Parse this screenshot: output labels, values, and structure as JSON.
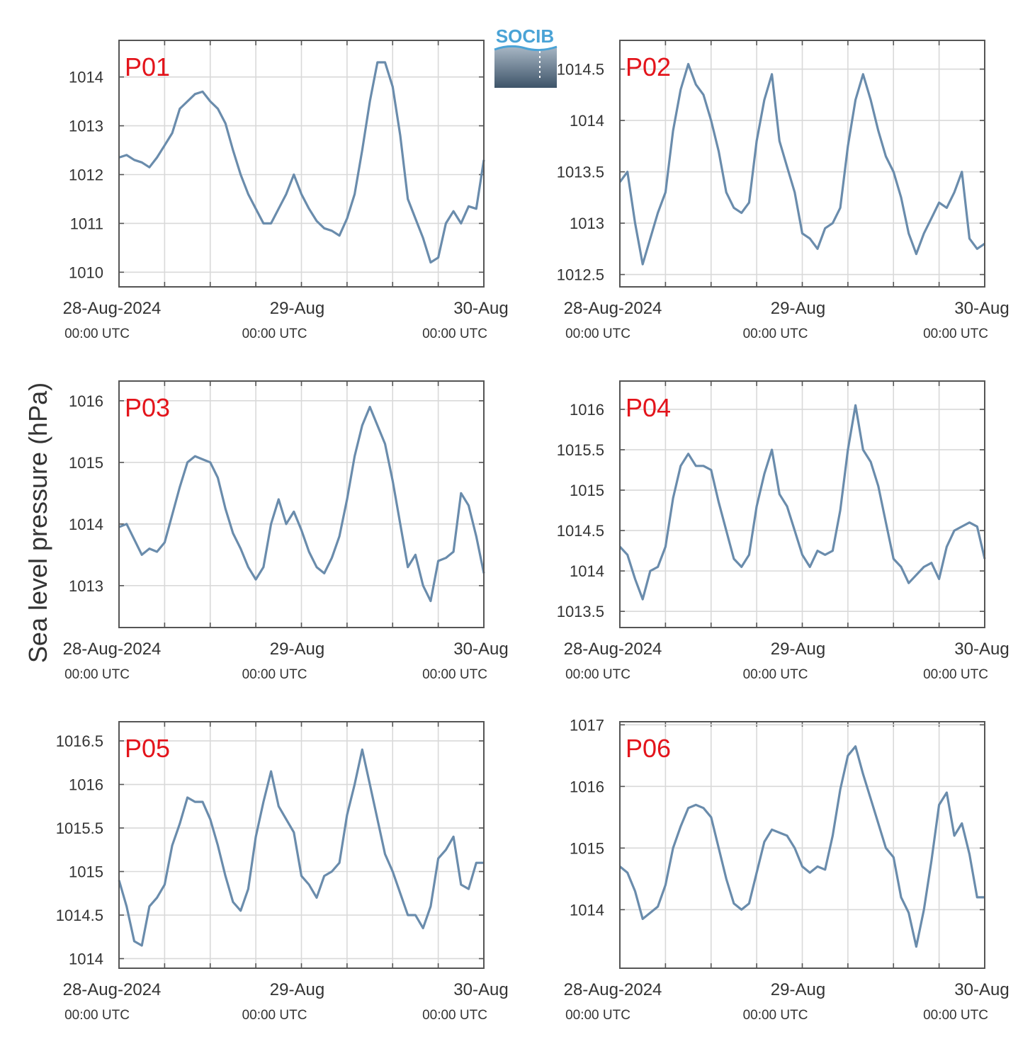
{
  "figure": {
    "ylabel": "Sea level pressure (hPa)",
    "logo_text": "SOCIB",
    "series_color": "#6a8cac",
    "label_color": "#e3141b",
    "grid_color": "#d9d9d9",
    "axis_color": "#555555"
  },
  "x_ticks": [
    {
      "date": "28-Aug-2024",
      "time": "00:00 UTC"
    },
    {
      "date": "29-Aug",
      "time": "00:00 UTC"
    },
    {
      "date": "30-Aug",
      "time": "00:00 UTC"
    }
  ],
  "chart_data": [
    {
      "type": "line",
      "label": "P01",
      "xlim": [
        0,
        48
      ],
      "ylim": [
        1009.7,
        1014.75
      ],
      "yticks": [
        1010,
        1011,
        1012,
        1013,
        1014
      ],
      "x": [
        0,
        1,
        2,
        3,
        4,
        5,
        6,
        7,
        8,
        9,
        10,
        11,
        12,
        13,
        14,
        15,
        16,
        17,
        18,
        19,
        20,
        21,
        22,
        23,
        24,
        25,
        26,
        27,
        28,
        29,
        30,
        31,
        32,
        33,
        34,
        35,
        36,
        37,
        38,
        39,
        40,
        41,
        42,
        43,
        44,
        45,
        46,
        47,
        48
      ],
      "values": [
        1012.35,
        1012.4,
        1012.3,
        1012.25,
        1012.15,
        1012.35,
        1012.6,
        1012.85,
        1013.35,
        1013.5,
        1013.65,
        1013.7,
        1013.5,
        1013.35,
        1013.05,
        1012.5,
        1012.0,
        1011.6,
        1011.3,
        1011.0,
        1011.0,
        1011.3,
        1011.6,
        1012.0,
        1011.6,
        1011.3,
        1011.05,
        1010.9,
        1010.85,
        1010.75,
        1011.1,
        1011.6,
        1012.5,
        1013.5,
        1014.3,
        1014.3,
        1013.8,
        1012.8,
        1011.5,
        1011.1,
        1010.7,
        1010.2,
        1010.3,
        1011.0,
        1011.25,
        1011.0,
        1011.35,
        1011.3,
        1012.3
      ]
    },
    {
      "type": "line",
      "label": "P02",
      "xlim": [
        0,
        48
      ],
      "ylim": [
        1012.38,
        1014.78
      ],
      "yticks": [
        1012.5,
        1013,
        1013.5,
        1014,
        1014.5
      ],
      "x": [
        0,
        1,
        2,
        3,
        4,
        5,
        6,
        7,
        8,
        9,
        10,
        11,
        12,
        13,
        14,
        15,
        16,
        17,
        18,
        19,
        20,
        21,
        22,
        23,
        24,
        25,
        26,
        27,
        28,
        29,
        30,
        31,
        32,
        33,
        34,
        35,
        36,
        37,
        38,
        39,
        40,
        41,
        42,
        43,
        44,
        45,
        46,
        47,
        48
      ],
      "values": [
        1013.4,
        1013.5,
        1013.0,
        1012.6,
        1012.85,
        1013.1,
        1013.3,
        1013.9,
        1014.3,
        1014.55,
        1014.35,
        1014.25,
        1014.0,
        1013.7,
        1013.3,
        1013.15,
        1013.1,
        1013.2,
        1013.8,
        1014.2,
        1014.45,
        1013.8,
        1013.55,
        1013.3,
        1012.9,
        1012.85,
        1012.75,
        1012.95,
        1013.0,
        1013.15,
        1013.75,
        1014.2,
        1014.45,
        1014.2,
        1013.9,
        1013.65,
        1013.5,
        1013.25,
        1012.9,
        1012.7,
        1012.9,
        1013.05,
        1013.2,
        1013.15,
        1013.3,
        1013.5,
        1012.85,
        1012.75,
        1012.8
      ]
    },
    {
      "type": "line",
      "label": "P03",
      "xlim": [
        0,
        48
      ],
      "ylim": [
        1012.32,
        1016.32
      ],
      "yticks": [
        1013,
        1014,
        1015,
        1016
      ],
      "x": [
        0,
        1,
        2,
        3,
        4,
        5,
        6,
        7,
        8,
        9,
        10,
        11,
        12,
        13,
        14,
        15,
        16,
        17,
        18,
        19,
        20,
        21,
        22,
        23,
        24,
        25,
        26,
        27,
        28,
        29,
        30,
        31,
        32,
        33,
        34,
        35,
        36,
        37,
        38,
        39,
        40,
        41,
        42,
        43,
        44,
        45,
        46,
        47,
        48
      ],
      "values": [
        1013.95,
        1014.0,
        1013.75,
        1013.5,
        1013.6,
        1013.55,
        1013.7,
        1014.15,
        1014.6,
        1015.0,
        1015.1,
        1015.05,
        1015.0,
        1014.75,
        1014.25,
        1013.85,
        1013.6,
        1013.3,
        1013.1,
        1013.3,
        1014.0,
        1014.4,
        1014.0,
        1014.2,
        1013.9,
        1013.55,
        1013.3,
        1013.2,
        1013.45,
        1013.8,
        1014.4,
        1015.1,
        1015.6,
        1015.9,
        1015.6,
        1015.3,
        1014.7,
        1014.0,
        1013.3,
        1013.5,
        1013.0,
        1012.75,
        1013.4,
        1013.45,
        1013.55,
        1014.5,
        1014.3,
        1013.8,
        1013.2
      ]
    },
    {
      "type": "line",
      "label": "P04",
      "xlim": [
        0,
        48
      ],
      "ylim": [
        1013.3,
        1016.35
      ],
      "yticks": [
        1013.5,
        1014,
        1014.5,
        1015,
        1015.5,
        1016
      ],
      "x": [
        0,
        1,
        2,
        3,
        4,
        5,
        6,
        7,
        8,
        9,
        10,
        11,
        12,
        13,
        14,
        15,
        16,
        17,
        18,
        19,
        20,
        21,
        22,
        23,
        24,
        25,
        26,
        27,
        28,
        29,
        30,
        31,
        32,
        33,
        34,
        35,
        36,
        37,
        38,
        39,
        40,
        41,
        42,
        43,
        44,
        45,
        46,
        47,
        48
      ],
      "values": [
        1014.3,
        1014.2,
        1013.9,
        1013.65,
        1014.0,
        1014.05,
        1014.3,
        1014.9,
        1015.3,
        1015.45,
        1015.3,
        1015.3,
        1015.25,
        1014.85,
        1014.5,
        1014.15,
        1014.05,
        1014.2,
        1014.8,
        1015.2,
        1015.5,
        1014.95,
        1014.8,
        1014.5,
        1014.2,
        1014.05,
        1014.25,
        1014.2,
        1014.25,
        1014.75,
        1015.5,
        1016.05,
        1015.5,
        1015.35,
        1015.05,
        1014.6,
        1014.15,
        1014.05,
        1013.85,
        1013.95,
        1014.05,
        1014.1,
        1013.9,
        1014.3,
        1014.5,
        1014.55,
        1014.6,
        1014.55,
        1014.15
      ]
    },
    {
      "type": "line",
      "label": "P05",
      "xlim": [
        0,
        48
      ],
      "ylim": [
        1013.89,
        1016.72
      ],
      "yticks": [
        1014,
        1014.5,
        1015,
        1015.5,
        1016,
        1016.5
      ],
      "x": [
        0,
        1,
        2,
        3,
        4,
        5,
        6,
        7,
        8,
        9,
        10,
        11,
        12,
        13,
        14,
        15,
        16,
        17,
        18,
        19,
        20,
        21,
        22,
        23,
        24,
        25,
        26,
        27,
        28,
        29,
        30,
        31,
        32,
        33,
        34,
        35,
        36,
        37,
        38,
        39,
        40,
        41,
        42,
        43,
        44,
        45,
        46,
        47,
        48
      ],
      "values": [
        1014.9,
        1014.6,
        1014.2,
        1014.15,
        1014.6,
        1014.7,
        1014.85,
        1015.3,
        1015.55,
        1015.85,
        1015.8,
        1015.8,
        1015.6,
        1015.3,
        1014.95,
        1014.65,
        1014.55,
        1014.8,
        1015.4,
        1015.8,
        1016.15,
        1015.75,
        1015.6,
        1015.45,
        1014.95,
        1014.85,
        1014.7,
        1014.95,
        1015.0,
        1015.1,
        1015.65,
        1016.0,
        1016.4,
        1016.0,
        1015.6,
        1015.2,
        1015.0,
        1014.75,
        1014.5,
        1014.5,
        1014.35,
        1014.6,
        1015.15,
        1015.25,
        1015.4,
        1014.85,
        1014.8,
        1015.1,
        1015.1
      ]
    },
    {
      "type": "line",
      "label": "P06",
      "xlim": [
        0,
        48
      ],
      "ylim": [
        1013.05,
        1017.05
      ],
      "yticks": [
        1014,
        1015,
        1016,
        1017
      ],
      "x": [
        0,
        1,
        2,
        3,
        4,
        5,
        6,
        7,
        8,
        9,
        10,
        11,
        12,
        13,
        14,
        15,
        16,
        17,
        18,
        19,
        20,
        21,
        22,
        23,
        24,
        25,
        26,
        27,
        28,
        29,
        30,
        31,
        32,
        33,
        34,
        35,
        36,
        37,
        38,
        39,
        40,
        41,
        42,
        43,
        44,
        45,
        46,
        47,
        48
      ],
      "values": [
        1014.7,
        1014.6,
        1014.3,
        1013.85,
        1013.95,
        1014.05,
        1014.4,
        1015.0,
        1015.35,
        1015.65,
        1015.7,
        1015.65,
        1015.5,
        1015.0,
        1014.5,
        1014.1,
        1014.0,
        1014.1,
        1014.6,
        1015.1,
        1015.3,
        1015.25,
        1015.2,
        1015.0,
        1014.7,
        1014.6,
        1014.7,
        1014.65,
        1015.2,
        1015.95,
        1016.5,
        1016.65,
        1016.2,
        1015.8,
        1015.4,
        1015.0,
        1014.85,
        1014.2,
        1013.95,
        1013.4,
        1014.0,
        1014.8,
        1015.7,
        1015.9,
        1015.2,
        1015.4,
        1014.9,
        1014.2,
        1014.2
      ]
    }
  ]
}
